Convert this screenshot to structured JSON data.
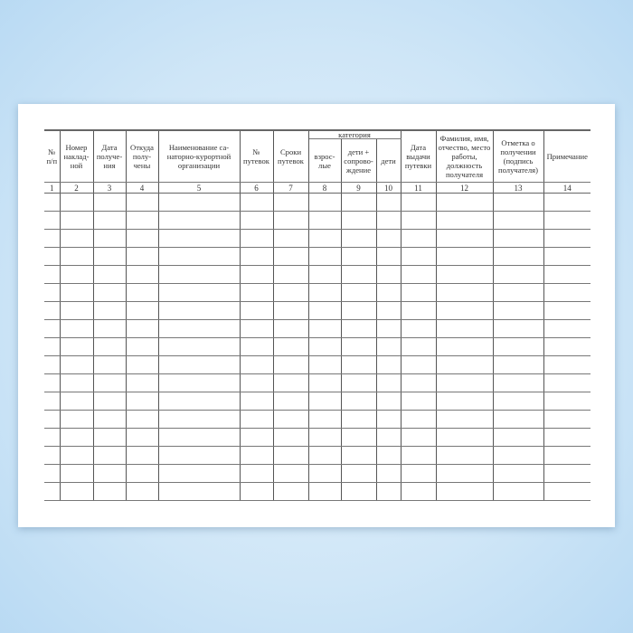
{
  "form": {
    "headers": {
      "c1": "№ п/п",
      "c2": "Номер наклад-ной",
      "c3": "Дата получе-ния",
      "c4": "Откуда полу-чены",
      "c5": "Наименование са-наторно-курортной организации",
      "c6": "№ путевок",
      "c7": "Сроки путевок",
      "category": "категория",
      "c8": "взрос-лые",
      "c9": "дети + сопрово-ждение",
      "c10": "дети",
      "c11": "Дата выдачи путевки",
      "c12": "Фамилия, имя, отчество, место работы, должность получателя",
      "c13": "Отметка о получении (подпись получателя)",
      "c14": "Примечание"
    },
    "column_numbers": [
      "1",
      "2",
      "3",
      "4",
      "5",
      "6",
      "7",
      "8",
      "9",
      "10",
      "11",
      "12",
      "13",
      "14"
    ]
  }
}
